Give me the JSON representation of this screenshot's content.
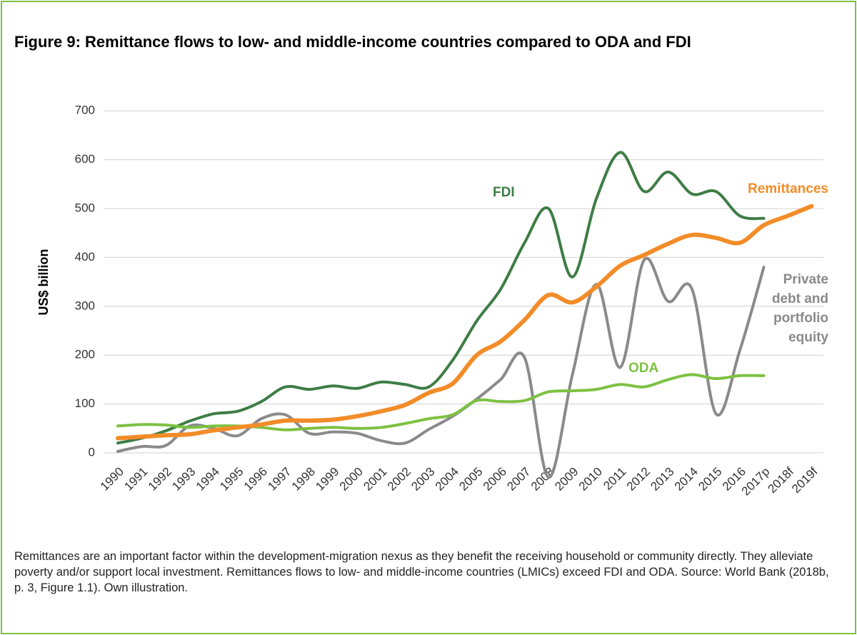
{
  "chart_data": {
    "type": "line",
    "title": "Figure 9: Remittance flows to low- and middle-income countries compared to ODA and FDI",
    "y_label": "US$ billion",
    "caption": "Remittances are an important factor within the development-migration nexus as they benefit the receiving household or community directly. They alleviate poverty and/or support local investment. Remittances flows to low- and middle-income countries (LMICs) exceed FDI and ODA. Source: World Bank (2018b, p. 3, Figure 1.1). Own illustration.",
    "categories": [
      "1990",
      "1991",
      "1992",
      "1993",
      "1994",
      "1995",
      "1996",
      "1997",
      "1998",
      "1999",
      "2000",
      "2001",
      "2002",
      "2003",
      "2004",
      "2005",
      "2006",
      "2007",
      "2008",
      "2009",
      "2010",
      "2011",
      "2012",
      "2013",
      "2014",
      "2015",
      "2016",
      "2017p",
      "2018f",
      "2019f"
    ],
    "ylim": [
      -60,
      700
    ],
    "yticks": [
      0,
      100,
      200,
      300,
      400,
      500,
      600,
      700
    ],
    "grid": true,
    "series": [
      {
        "name": "FDI",
        "color": "#3e7d45",
        "values": [
          20,
          30,
          45,
          65,
          80,
          85,
          105,
          135,
          130,
          137,
          132,
          145,
          140,
          135,
          190,
          270,
          335,
          430,
          500,
          360,
          520,
          615,
          535,
          575,
          530,
          535,
          485,
          480,
          null,
          null
        ]
      },
      {
        "name": "Private debt and portfolio equity",
        "color": "#8a8a8c",
        "values": [
          3,
          13,
          15,
          55,
          50,
          35,
          70,
          78,
          40,
          43,
          40,
          25,
          20,
          48,
          75,
          110,
          150,
          195,
          -50,
          160,
          345,
          175,
          395,
          310,
          335,
          80,
          210,
          380,
          null,
          null
        ]
      },
      {
        "name": "ODA",
        "color": "#7dc142",
        "values": [
          55,
          58,
          57,
          52,
          55,
          55,
          52,
          47,
          50,
          52,
          50,
          52,
          60,
          70,
          78,
          107,
          105,
          107,
          125,
          127,
          130,
          140,
          135,
          150,
          160,
          152,
          158,
          158,
          null,
          null
        ]
      },
      {
        "name": "Remittances",
        "color": "#f28c28",
        "values": [
          30,
          33,
          36,
          38,
          46,
          52,
          58,
          66,
          66,
          68,
          75,
          85,
          98,
          123,
          142,
          200,
          228,
          272,
          323,
          308,
          340,
          383,
          405,
          428,
          446,
          440,
          430,
          466,
          485,
          505
        ]
      }
    ]
  }
}
